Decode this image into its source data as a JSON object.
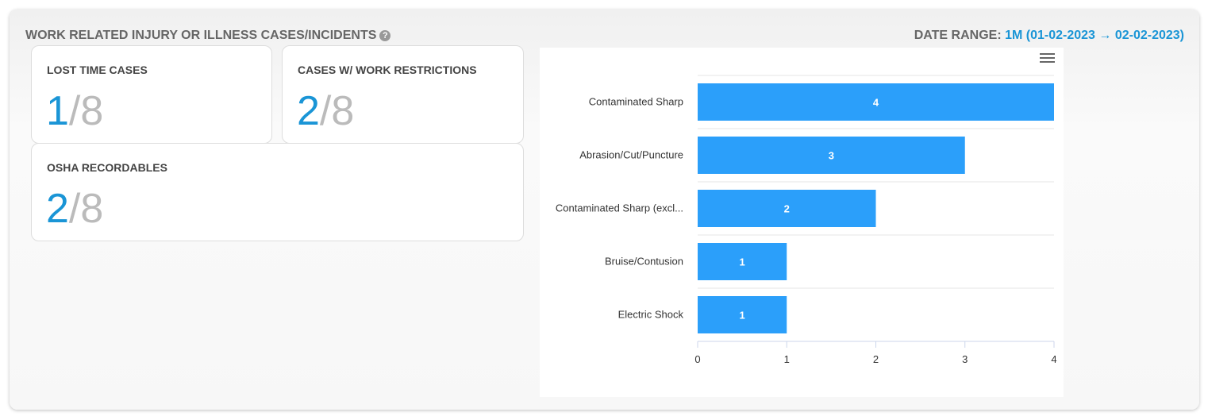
{
  "header": {
    "title": "WORK RELATED INJURY OR ILLNESS CASES/INCIDENTS",
    "help_icon": "question-circle-icon",
    "date_range_label": "DATE RANGE:",
    "date_range_value": "1M (01-02-2023 → 02-02-2023)"
  },
  "cards": [
    {
      "label": "LOST TIME CASES",
      "value": "1",
      "total": "/8"
    },
    {
      "label": "CASES W/ WORK RESTRICTIONS",
      "value": "2",
      "total": "/8"
    },
    {
      "label": "OSHA RECORDABLES",
      "value": "2",
      "total": "/8"
    }
  ],
  "colors": {
    "accent": "#1a95d6",
    "bar": "#2b9ffa"
  },
  "chart_data": {
    "type": "bar",
    "orientation": "horizontal",
    "categories": [
      "Contaminated Sharp",
      "Abrasion/Cut/Puncture",
      "Contaminated Sharp (excl...",
      "Bruise/Contusion",
      "Electric Shock"
    ],
    "values": [
      4,
      3,
      2,
      1,
      1
    ],
    "xlim": [
      0,
      4
    ],
    "xticks": [
      "0",
      "1",
      "2",
      "3",
      "4"
    ],
    "grid": true,
    "data_labels": true
  }
}
